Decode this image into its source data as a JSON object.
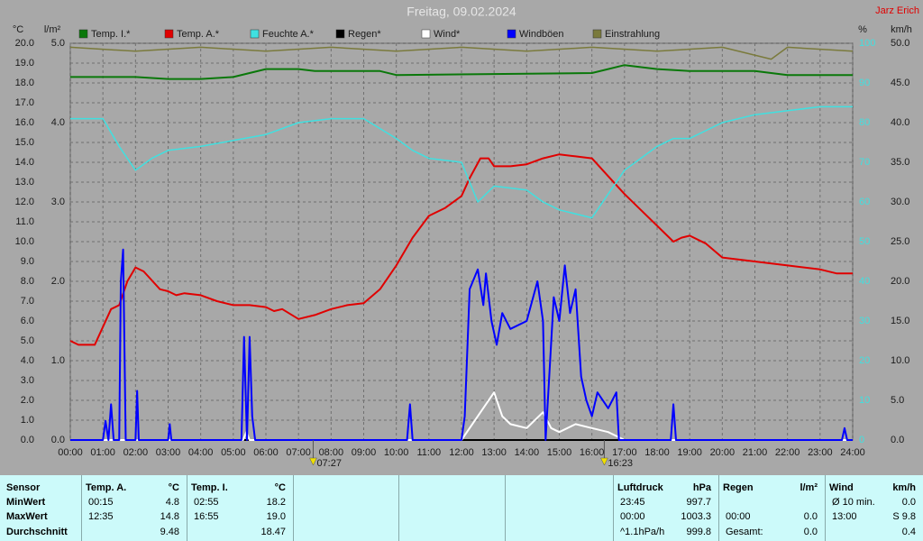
{
  "chart_data": {
    "type": "line",
    "title": "Freitag, 09.02.2024",
    "author": "Jarz Erich",
    "y_label": "°C",
    "y2_label": "l/m²",
    "y3_label": "%",
    "y4_label": "km/h",
    "xlim": [
      0,
      24
    ],
    "xticks": [
      {
        "value": 0,
        "label": "00:00"
      },
      {
        "value": 1,
        "label": "01:00"
      },
      {
        "value": 2,
        "label": "02:00"
      },
      {
        "value": 3,
        "label": "03:00"
      },
      {
        "value": 4,
        "label": "04:00"
      },
      {
        "value": 5,
        "label": "05:00"
      },
      {
        "value": 6,
        "label": "06:00"
      },
      {
        "value": 7,
        "label": "07:00"
      },
      {
        "value": 8,
        "label": "08:00"
      },
      {
        "value": 9,
        "label": "09:00"
      },
      {
        "value": 10,
        "label": "10:00"
      },
      {
        "value": 11,
        "label": "11:00"
      },
      {
        "value": 12,
        "label": "12:00"
      },
      {
        "value": 13,
        "label": "13:00"
      },
      {
        "value": 14,
        "label": "14:00"
      },
      {
        "value": 15,
        "label": "15:00"
      },
      {
        "value": 16,
        "label": "16:00"
      },
      {
        "value": 17,
        "label": "17:00"
      },
      {
        "value": 18,
        "label": "18:00"
      },
      {
        "value": 19,
        "label": "19:00"
      },
      {
        "value": 20,
        "label": "20:00"
      },
      {
        "value": 21,
        "label": "21:00"
      },
      {
        "value": 22,
        "label": "22:00"
      },
      {
        "value": 23,
        "label": "23:00"
      },
      {
        "value": 24,
        "label": "24:00"
      }
    ],
    "ylim": [
      0,
      20
    ],
    "yticks": [
      {
        "value": 0,
        "label": "0.0"
      },
      {
        "value": 1,
        "label": "1.0"
      },
      {
        "value": 2,
        "label": "2.0"
      },
      {
        "value": 3,
        "label": "3.0"
      },
      {
        "value": 4,
        "label": "4.0"
      },
      {
        "value": 5,
        "label": "5.0"
      },
      {
        "value": 6,
        "label": "6.0"
      },
      {
        "value": 7,
        "label": "7.0"
      },
      {
        "value": 8,
        "label": "8.0"
      },
      {
        "value": 9,
        "label": "9.0"
      },
      {
        "value": 10,
        "label": "10.0"
      },
      {
        "value": 11,
        "label": "11.0"
      },
      {
        "value": 12,
        "label": "12.0"
      },
      {
        "value": 13,
        "label": "13.0"
      },
      {
        "value": 14,
        "label": "14.0"
      },
      {
        "value": 15,
        "label": "15.0"
      },
      {
        "value": 16,
        "label": "16.0"
      },
      {
        "value": 17,
        "label": "17.0"
      },
      {
        "value": 18,
        "label": "18.0"
      },
      {
        "value": 19,
        "label": "19.0"
      },
      {
        "value": 20,
        "label": "20.0"
      }
    ],
    "y2lim": [
      0,
      5
    ],
    "y2ticks": [
      {
        "value": 0,
        "label": "0.0"
      },
      {
        "value": 1,
        "label": "1.0"
      },
      {
        "value": 2,
        "label": "2.0"
      },
      {
        "value": 3,
        "label": "3.0"
      },
      {
        "value": 4,
        "label": "4.0"
      },
      {
        "value": 5,
        "label": "5.0"
      }
    ],
    "y3lim": [
      0,
      100
    ],
    "y3ticks": [
      0,
      10,
      20,
      30,
      40,
      50,
      60,
      70,
      80,
      90,
      100
    ],
    "y4lim": [
      0,
      50
    ],
    "y4ticks": [
      {
        "value": 0,
        "label": "0.0"
      },
      {
        "value": 5,
        "label": "5.0"
      },
      {
        "value": 10,
        "label": "10.0"
      },
      {
        "value": 15,
        "label": "15.0"
      },
      {
        "value": 20,
        "label": "20.0"
      },
      {
        "value": 25,
        "label": "25.0"
      },
      {
        "value": 30,
        "label": "30.0"
      },
      {
        "value": 35,
        "label": "35.0"
      },
      {
        "value": 40,
        "label": "40.0"
      },
      {
        "value": 45,
        "label": "45.0"
      },
      {
        "value": 50,
        "label": "50.0"
      }
    ],
    "grid": true,
    "series": [
      {
        "name": "Temp. I.*",
        "color": "#0a780a",
        "axis": "y",
        "x": [
          0,
          2,
          3,
          4,
          5,
          5.5,
          6,
          7,
          7.5,
          9.5,
          10,
          16,
          16.5,
          17,
          18,
          19,
          21,
          22,
          24
        ],
        "values": [
          18.3,
          18.3,
          18.2,
          18.2,
          18.3,
          18.5,
          18.7,
          18.7,
          18.6,
          18.6,
          18.4,
          18.5,
          18.7,
          18.9,
          18.7,
          18.6,
          18.6,
          18.4,
          18.4
        ]
      },
      {
        "name": "Temp. A.*",
        "color": "#e00000",
        "axis": "y",
        "x": [
          0,
          0.25,
          0.75,
          1.25,
          1.5,
          1.75,
          2,
          2.25,
          2.75,
          3,
          3.25,
          3.5,
          4,
          4.5,
          5,
          5.5,
          6,
          6.25,
          6.5,
          7,
          7.5,
          8,
          8.5,
          9,
          9.5,
          10,
          10.5,
          11,
          11.5,
          12,
          12.25,
          12.58,
          12.83,
          13,
          13.5,
          14,
          14.5,
          15,
          15.5,
          16,
          16.5,
          17,
          17.5,
          18,
          18.5,
          18.75,
          19,
          19.5,
          20,
          21,
          22,
          23,
          23.5,
          24
        ],
        "values": [
          5.0,
          4.8,
          4.8,
          6.6,
          6.8,
          8.0,
          8.7,
          8.5,
          7.6,
          7.5,
          7.3,
          7.4,
          7.3,
          7.0,
          6.8,
          6.8,
          6.7,
          6.5,
          6.6,
          6.1,
          6.3,
          6.6,
          6.8,
          6.9,
          7.6,
          8.8,
          10.2,
          11.3,
          11.7,
          12.3,
          13.2,
          14.2,
          14.2,
          13.8,
          13.8,
          13.9,
          14.2,
          14.4,
          14.3,
          14.2,
          13.3,
          12.4,
          11.6,
          10.8,
          10.0,
          10.2,
          10.3,
          9.9,
          9.2,
          9.0,
          8.8,
          8.6,
          8.4,
          8.4
        ]
      },
      {
        "name": "Feuchte A.*",
        "color": "#40e0e0",
        "axis": "y3",
        "x": [
          0,
          1,
          1.5,
          2,
          2.5,
          3,
          4,
          5,
          6,
          7,
          8,
          9,
          10,
          10.5,
          11,
          12,
          12.5,
          13,
          14,
          14.5,
          15,
          16,
          16.5,
          17,
          18,
          18.5,
          19,
          20,
          21,
          22,
          23,
          24
        ],
        "values": [
          81,
          81,
          74,
          68,
          71,
          73,
          74,
          75.5,
          77,
          80,
          81,
          81,
          76,
          73,
          71,
          70,
          60,
          64,
          63,
          60,
          58,
          56,
          62,
          68,
          74,
          76,
          76,
          80,
          82,
          83,
          84,
          84
        ]
      },
      {
        "name": "Regen*",
        "color": "#000000",
        "axis": "y2",
        "x": [
          0,
          24
        ],
        "values": [
          0,
          0
        ]
      },
      {
        "name": "Wind*",
        "color": "#ffffff",
        "axis": "y4",
        "x": [
          0,
          5.3,
          5.4,
          5.5,
          12,
          12.5,
          13,
          13.25,
          13.5,
          14,
          14.5,
          14.75,
          15,
          15.5,
          16,
          16.5,
          17,
          24
        ],
        "values": [
          0,
          0,
          1,
          0,
          0,
          3,
          6,
          3,
          2,
          1.5,
          3.5,
          1.5,
          1,
          2,
          1.5,
          1,
          0,
          0
        ]
      },
      {
        "name": "Windböen",
        "color": "#0000ff",
        "axis": "y4",
        "x": [
          0,
          1,
          1.08,
          1.17,
          1.25,
          1.33,
          1.5,
          1.55,
          1.62,
          1.7,
          2,
          2.05,
          2.1,
          3,
          3.05,
          3.1,
          5.25,
          5.33,
          5.42,
          5.5,
          5.58,
          5.67,
          10.33,
          10.42,
          10.5,
          12,
          12.1,
          12.25,
          12.5,
          12.67,
          12.75,
          12.92,
          13.08,
          13.25,
          13.5,
          14,
          14.33,
          14.5,
          14.58,
          14.83,
          15,
          15.17,
          15.33,
          15.5,
          15.67,
          15.83,
          16,
          16.17,
          16.5,
          16.75,
          16.83,
          18.42,
          18.5,
          18.58,
          23.67,
          23.75,
          23.83,
          24
        ],
        "values": [
          0,
          0,
          2.4,
          0,
          4.5,
          0,
          0,
          20,
          24,
          0,
          0,
          6.2,
          0,
          0,
          2,
          0,
          0,
          13,
          0,
          13,
          3,
          0,
          0,
          4.5,
          0,
          0,
          3,
          19,
          21.5,
          17,
          21,
          15,
          12,
          16,
          14,
          15,
          20,
          15,
          0,
          18,
          15,
          22,
          16,
          19,
          8,
          5,
          3,
          6,
          4,
          6,
          0,
          0,
          4.5,
          0,
          0,
          1.5,
          0,
          0
        ]
      },
      {
        "name": "Einstrahlung",
        "color": "#7a7a3c",
        "axis": "y3",
        "x": [
          0,
          2,
          4,
          6,
          8,
          10,
          12,
          14,
          16,
          18,
          20,
          21.5,
          22,
          24
        ],
        "values": [
          99,
          98,
          99,
          98,
          99,
          98,
          99,
          98,
          99,
          98,
          99,
          96,
          99,
          98
        ]
      }
    ],
    "annotations": [
      {
        "x": 7.45,
        "label": "07:27"
      },
      {
        "x": 16.38,
        "label": "16:23"
      }
    ]
  },
  "table": {
    "row_labels": [
      "Sensor",
      "MinWert",
      "MaxWert",
      "Durchschnitt"
    ],
    "groups": [
      {
        "header": "Temp. A.",
        "unit": "°C",
        "rows": [
          {
            "time": "00:15",
            "value": "4.8"
          },
          {
            "time": "12:35",
            "value": "14.8"
          },
          {
            "value": "9.48"
          }
        ]
      },
      {
        "header": "Temp. I.",
        "unit": "°C",
        "rows": [
          {
            "time": "02:55",
            "value": "18.2"
          },
          {
            "time": "16:55",
            "value": "19.0"
          },
          {
            "value": "18.47"
          }
        ]
      },
      {
        "header": "Luftdruck",
        "unit": "hPa",
        "rows": [
          {
            "time": "23:45",
            "value": "997.7"
          },
          {
            "time": "00:00",
            "value": "1003.3"
          },
          {
            "time": "^1.1hPa/h",
            "value": "999.8"
          }
        ]
      },
      {
        "header": "Regen",
        "unit": "l/m²",
        "rows": [
          null,
          {
            "time": "00:00",
            "value": "0.0"
          },
          {
            "time": "Gesamt:",
            "value": "0.0"
          }
        ]
      },
      {
        "header": "Wind",
        "unit": "km/h",
        "rows": [
          {
            "time": "Ø 10 min.",
            "value": "0.0"
          },
          {
            "time": "13:00",
            "value": "S 9.8"
          },
          {
            "value": "0.4"
          }
        ]
      }
    ]
  }
}
